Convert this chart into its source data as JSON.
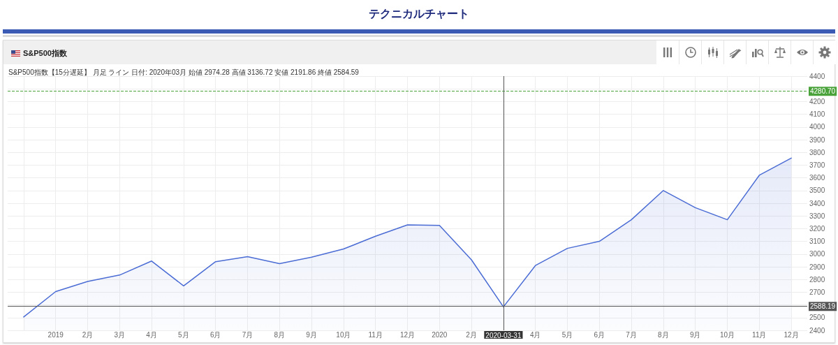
{
  "chart_data": {
    "type": "area",
    "title": "テクニカルチャート",
    "subtitle": "S&P500指数【15分遅延】 月足 ライン 日付: 2020年03月 始値 2974.28 高値 3136.72 安値 2191.86 終値 2584.59",
    "annotations": [
      "S&P500指数"
    ],
    "categories": [
      null,
      "2019",
      "2月",
      "3月",
      "4月",
      "5月",
      "6月",
      "7月",
      "8月",
      "9月",
      "10月",
      "11月",
      "12月",
      "2020",
      "2月",
      "2020-03-31",
      "4月",
      "5月",
      "6月",
      "7月",
      "8月",
      "9月",
      "10月",
      "11月",
      "12月"
    ],
    "values": [
      2505,
      2705,
      2785,
      2835,
      2945,
      2750,
      2940,
      2980,
      2925,
      2975,
      3040,
      3140,
      3230,
      3225,
      2955,
      2584.59,
      2910,
      3045,
      3100,
      3270,
      3500,
      3365,
      3270,
      3620,
      3755
    ],
    "color": "#4a6cd4",
    "marker": "none",
    "ylim": [
      2400,
      4400
    ],
    "yticks": [
      2400,
      2500,
      {
        "value": 2600,
        "label": null
      },
      2700,
      2800,
      2900,
      3000,
      3100,
      3200,
      3300,
      3400,
      3500,
      3600,
      3700,
      3800,
      3900,
      4000,
      4100,
      4200,
      {
        "value": 4300,
        "label": null
      },
      4400
    ],
    "ref_lines": [
      {
        "axis": "y",
        "value": 4280.7,
        "label": "4280.70",
        "color": "#4aa33a",
        "line_style": "dashed"
      },
      {
        "axis": "y",
        "value": 2588.19,
        "label": "2588.19",
        "color": "#555555",
        "line_style": "solid"
      },
      {
        "axis": "x",
        "value": "2020-03-31",
        "color": "#555555",
        "line_style": "solid"
      }
    ],
    "grid": true
  }
}
